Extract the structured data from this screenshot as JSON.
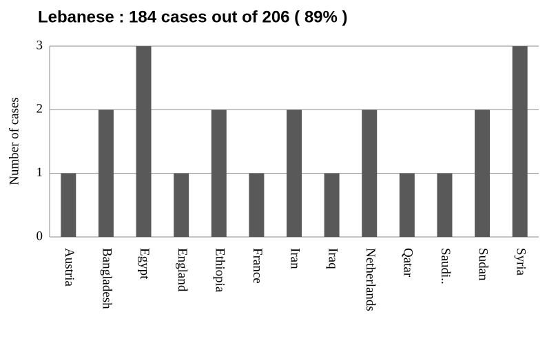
{
  "chart_data": {
    "type": "bar",
    "title": "Lebanese : 184 cases out of 206 ( 89% )",
    "y_label": "Number of cases",
    "categories": [
      "Austria",
      "Bangladesh",
      "Egypt",
      "England",
      "Ethiopia",
      "France",
      "Iran",
      "Iraq",
      "Netherlands",
      "Qatar",
      "Saudi..",
      "Sudan",
      "Syria"
    ],
    "values": [
      1,
      2,
      3,
      1,
      2,
      1,
      2,
      1,
      2,
      1,
      1,
      2,
      3
    ],
    "color": "#595959",
    "ylim": [
      0,
      3
    ],
    "yticks": [
      0,
      1,
      2,
      3
    ],
    "grid": true
  }
}
